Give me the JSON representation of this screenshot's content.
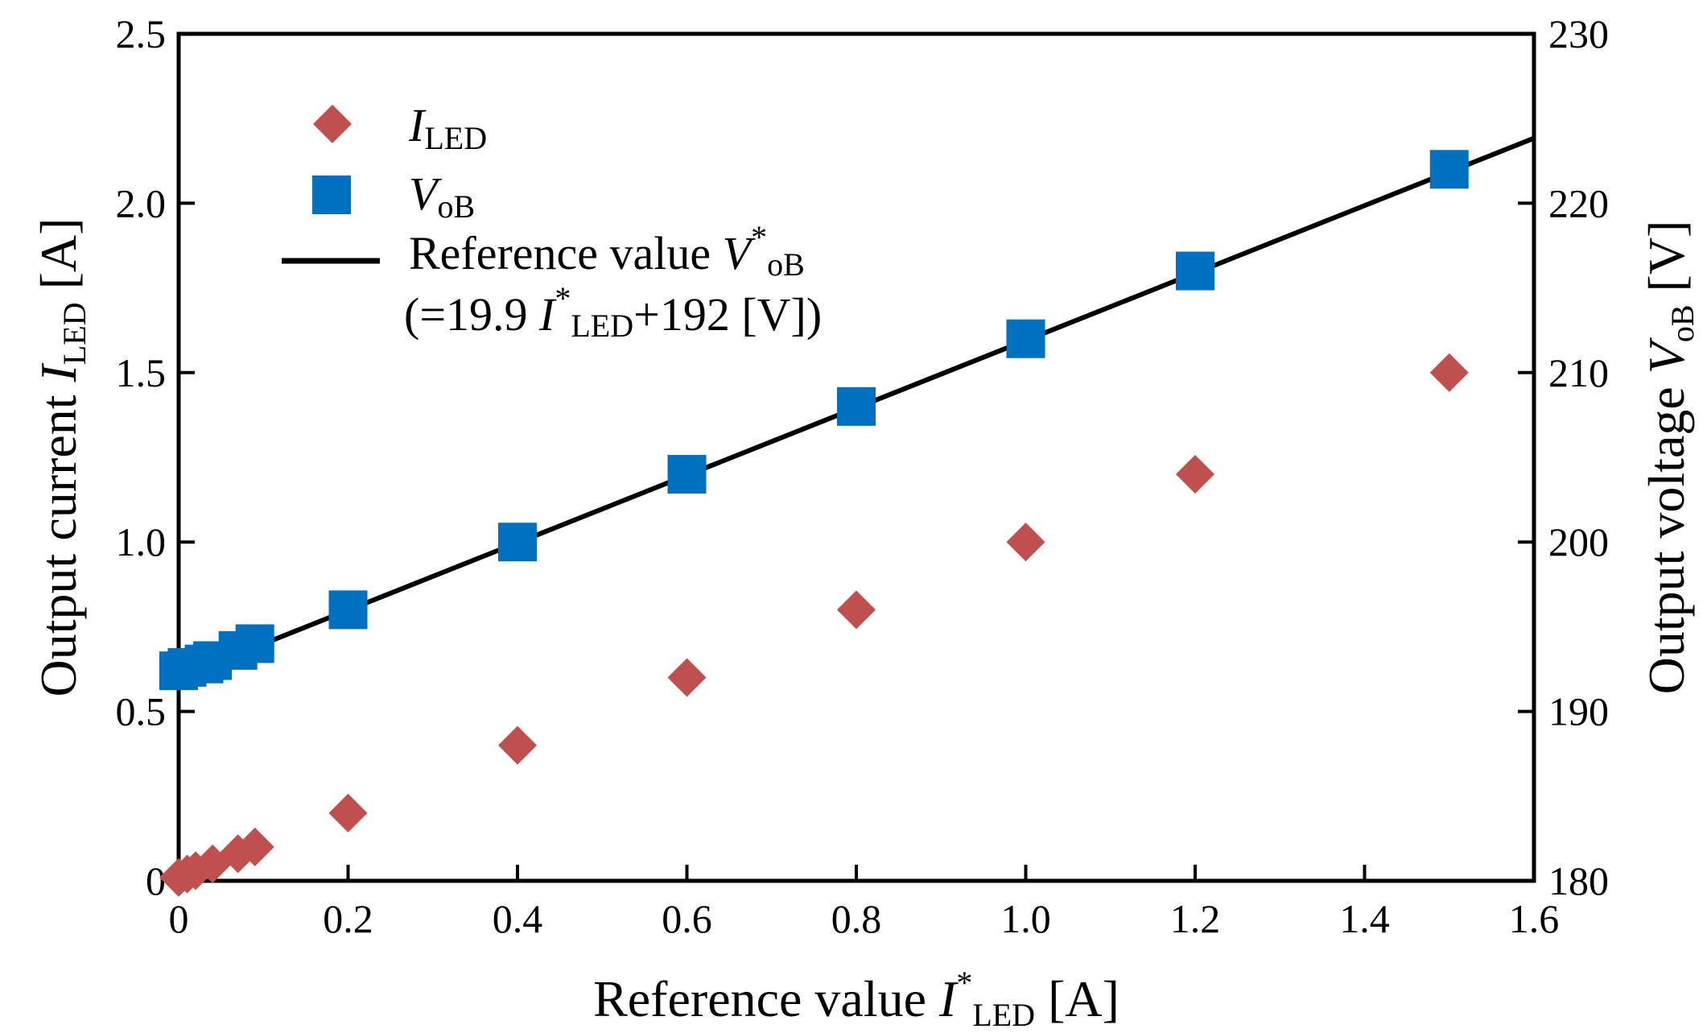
{
  "chart_data": {
    "type": "scatter",
    "x_axis": {
      "label_main": "Reference value ",
      "label_var": "I",
      "label_sup": "*",
      "label_sub": "LED",
      "label_unit": " [A]",
      "range": [
        0,
        1.6
      ],
      "ticks": [
        0,
        0.2,
        0.4,
        0.6,
        0.8,
        1.0,
        1.2,
        1.4,
        1.6
      ],
      "tick_labels": [
        "0",
        "0.2",
        "0.4",
        "0.6",
        "0.8",
        "1.0",
        "1.2",
        "1.4",
        "1.6"
      ]
    },
    "y_axis_left": {
      "label_main": "Output current ",
      "label_var": "I",
      "label_sub": "LED",
      "label_unit": " [A]",
      "range": [
        0,
        2.5
      ],
      "ticks": [
        0,
        0.5,
        1.0,
        1.5,
        2.0,
        2.5
      ],
      "tick_labels": [
        "0",
        "0.5",
        "1.0",
        "1.5",
        "2.0",
        "2.5"
      ]
    },
    "y_axis_right": {
      "label_main": "Output voltage ",
      "label_var": "V",
      "label_sub": "oB",
      "label_unit": " [V]",
      "range": [
        180,
        230
      ],
      "ticks": [
        180,
        190,
        200,
        210,
        220,
        230
      ],
      "tick_labels": [
        "180",
        "190",
        "200",
        "210",
        "220",
        "230"
      ]
    },
    "series": [
      {
        "name": "I_LED",
        "legend_var": "I",
        "legend_sub": "LED",
        "marker": "diamond",
        "color": "#C0504D",
        "axis": "left",
        "x": [
          0,
          0.01,
          0.02,
          0.04,
          0.07,
          0.09,
          0.2,
          0.4,
          0.6,
          0.8,
          1.0,
          1.2,
          1.5
        ],
        "y": [
          0.01,
          0.02,
          0.03,
          0.05,
          0.08,
          0.1,
          0.2,
          0.4,
          0.6,
          0.8,
          1.0,
          1.2,
          1.5
        ]
      },
      {
        "name": "V_oB",
        "legend_var": "V",
        "legend_sub": "oB",
        "marker": "square",
        "color": "#0070C0",
        "axis": "right",
        "x": [
          0,
          0.01,
          0.03,
          0.04,
          0.07,
          0.09,
          0.2,
          0.4,
          0.6,
          0.8,
          1.0,
          1.2,
          1.5
        ],
        "y": [
          192.4,
          192.6,
          192.8,
          193.0,
          193.6,
          194.0,
          196.0,
          200.0,
          204.0,
          208.0,
          212.0,
          216.0,
          222.0
        ]
      }
    ],
    "reference_line": {
      "legend_main": "Reference value ",
      "legend_var": "V",
      "legend_sup": "*",
      "legend_sub": "oB",
      "formula_open": "(=19.9 ",
      "formula_var": "I",
      "formula_sup": "*",
      "formula_sub": "LED",
      "formula_tail": "+192 [V])",
      "slope": 19.9,
      "intercept": 192,
      "axis": "right",
      "color": "#000000",
      "x_range": [
        0,
        1.6
      ]
    },
    "legend_position": "top-left",
    "grid": false
  }
}
